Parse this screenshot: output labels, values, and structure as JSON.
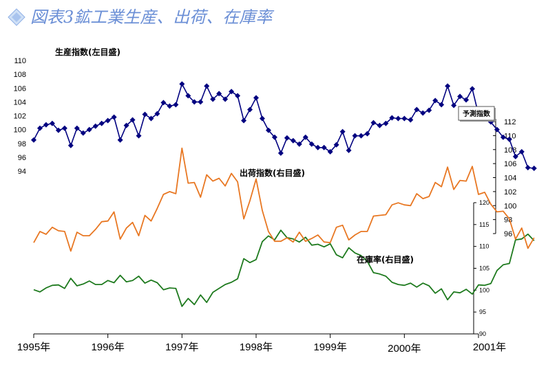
{
  "title": "図表3鉱工業生産、出荷、在庫率",
  "chart_data": {
    "type": "line",
    "x_labels": [
      "1995年",
      "1996年",
      "1997年",
      "1998年",
      "1999年",
      "2000年",
      "2001年"
    ],
    "colors": {
      "production": "#000080",
      "shipments": "#e87722",
      "inventory": "#1e7a1e",
      "forecast": "#29c3e0",
      "title": "#6b8fd6"
    },
    "production": {
      "label": "生産指数(左目盛)",
      "axis": {
        "min": 94,
        "max": 110,
        "step": 2
      },
      "values": [
        98.5,
        100.2,
        100.7,
        100.9,
        99.9,
        100.2,
        97.7,
        100.2,
        99.5,
        100.0,
        100.5,
        100.9,
        101.3,
        101.8,
        98.5,
        100.6,
        101.4,
        99.1,
        102.2,
        101.6,
        102.3,
        103.9,
        103.4,
        103.6,
        106.6,
        104.9,
        104.0,
        104.0,
        106.3,
        104.4,
        105.2,
        104.4,
        105.5,
        104.9,
        101.3,
        102.9,
        104.6,
        101.6,
        99.9,
        98.9,
        96.6,
        98.8,
        98.4,
        97.9,
        98.9,
        97.9,
        97.4,
        97.4,
        96.8,
        97.8,
        99.7,
        97.0,
        99.1,
        99.1,
        99.4,
        101.0,
        100.6,
        100.9,
        101.7,
        101.6,
        101.6,
        101.4,
        102.9,
        102.4,
        102.8,
        104.2,
        103.6,
        106.3,
        103.5,
        104.8,
        104.3,
        105.9,
        102.2,
        102.3,
        101.1,
        100.0,
        98.9,
        98.6,
        96.1,
        96.8,
        94.5,
        94.4
      ],
      "forecast_values": [
        94.3,
        94.6
      ]
    },
    "shipments": {
      "label": "出荷指数(右目盛)",
      "axis": {
        "min": 96,
        "max": 112,
        "step": 2
      },
      "values": [
        94.7,
        96.3,
        95.9,
        96.9,
        96.4,
        96.3,
        93.5,
        96.2,
        95.7,
        95.7,
        96.6,
        97.7,
        97.8,
        99.1,
        95.2,
        96.8,
        97.6,
        95.7,
        98.6,
        97.8,
        99.6,
        101.6,
        102.0,
        101.7,
        108.2,
        103.2,
        103.3,
        101.2,
        104.4,
        103.5,
        103.9,
        102.8,
        104.6,
        103.4,
        98.1,
        100.7,
        103.8,
        99.3,
        96.3,
        94.9,
        94.9,
        95.4,
        94.8,
        96.2,
        94.9,
        95.3,
        95.8,
        94.8,
        94.7,
        96.9,
        97.2,
        95.1,
        95.8,
        96.3,
        96.3,
        98.5,
        98.6,
        98.7,
        100.1,
        100.4,
        100.1,
        100.0,
        101.7,
        101.0,
        101.3,
        103.3,
        102.7,
        105.5,
        102.3,
        103.6,
        103.5,
        105.6,
        101.6,
        101.9,
        100.2,
        99.1,
        99.2,
        98.1,
        95.2,
        96.8,
        93.9,
        95.4
      ]
    },
    "inventory": {
      "label": "在庫率(右目盛)",
      "axis": {
        "min": 90,
        "max": 120,
        "step": 5
      },
      "values": [
        100.1,
        99.6,
        100.5,
        101.1,
        101.2,
        100.4,
        102.7,
        101.0,
        101.4,
        102.1,
        101.3,
        101.3,
        102.2,
        101.7,
        103.4,
        101.9,
        102.2,
        103.2,
        101.6,
        102.3,
        101.7,
        100.1,
        100.5,
        100.4,
        96.3,
        98.1,
        96.7,
        98.9,
        97.2,
        99.5,
        100.4,
        101.3,
        101.8,
        102.6,
        107.2,
        106.3,
        107.0,
        111.1,
        112.4,
        111.5,
        113.7,
        112.0,
        111.7,
        111.0,
        112.1,
        110.3,
        110.5,
        109.9,
        110.6,
        108.1,
        107.4,
        109.7,
        108.5,
        107.9,
        106.6,
        104.0,
        103.7,
        103.2,
        101.8,
        101.3,
        101.1,
        101.6,
        100.7,
        101.6,
        101.0,
        99.3,
        100.3,
        97.8,
        99.6,
        99.4,
        100.2,
        99.1,
        101.2,
        101.1,
        101.5,
        104.5,
        105.8,
        106.1,
        111.5,
        111.7,
        112.8,
        111.3
      ]
    },
    "forecast": {
      "label": "予測指数"
    }
  }
}
